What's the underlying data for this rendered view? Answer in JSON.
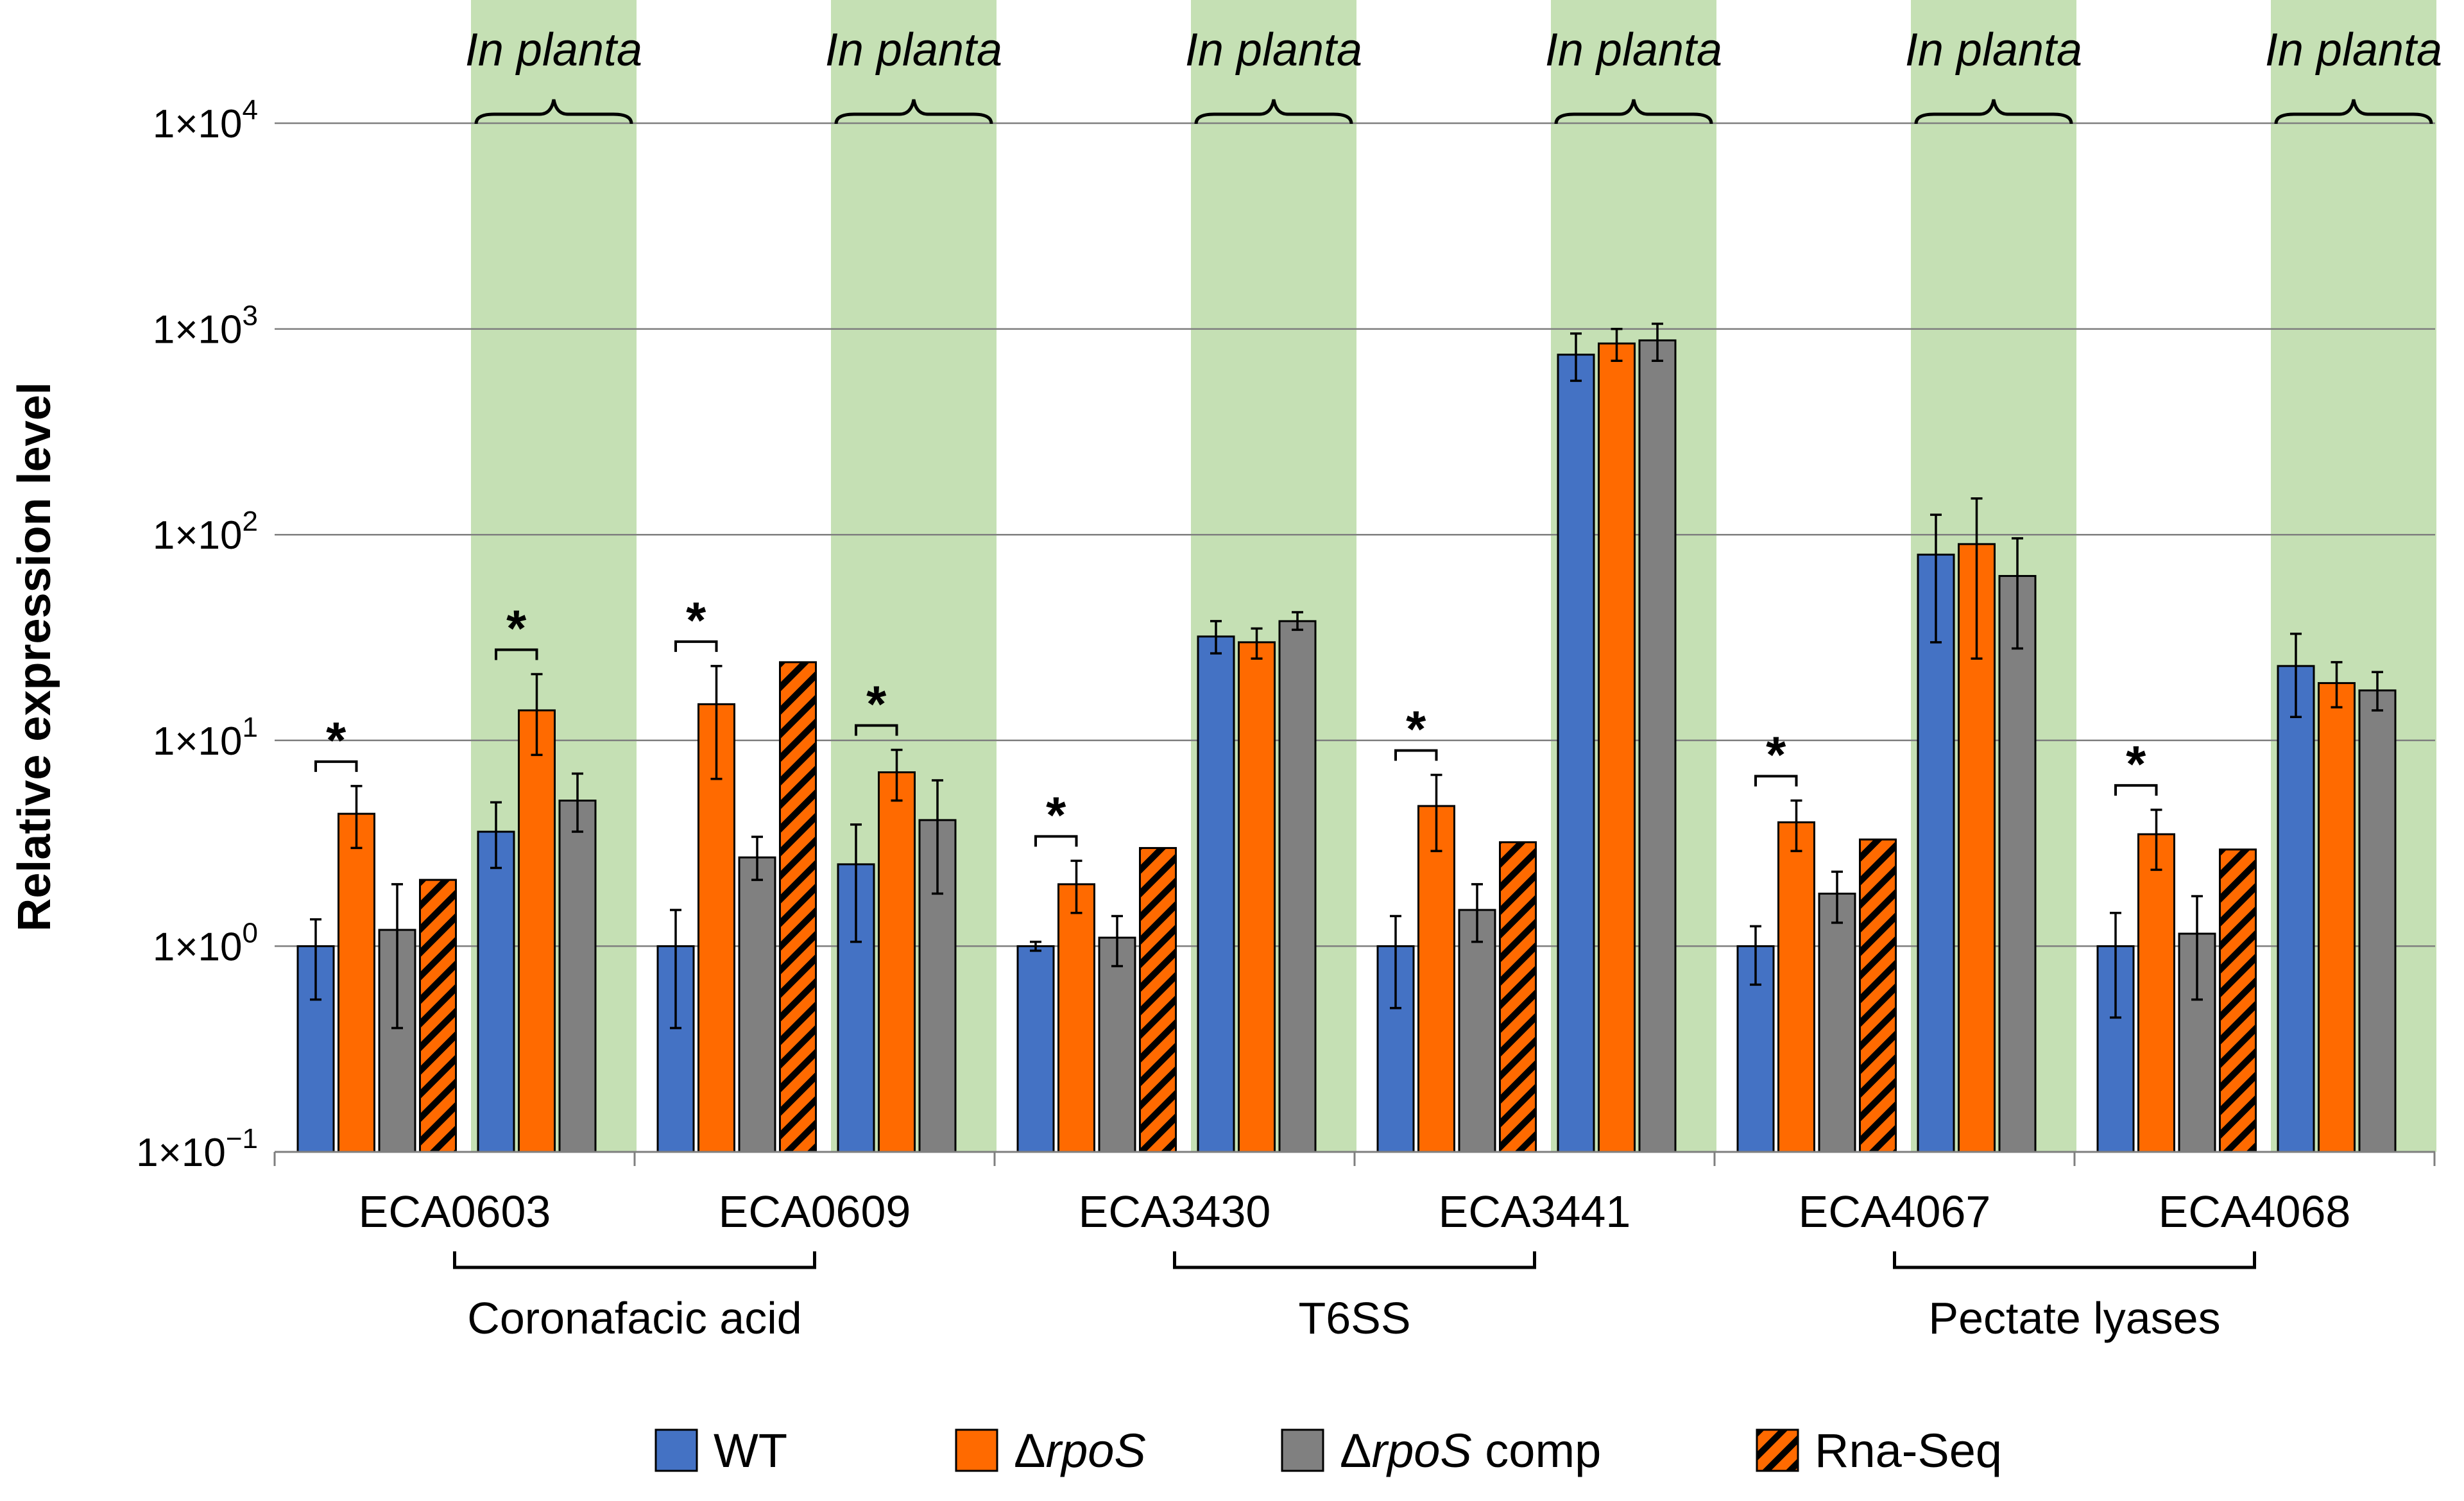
{
  "chart_data": {
    "type": "bar",
    "yscale": "log",
    "ylabel": "Relative expression level",
    "ylim": [
      0.1,
      10000
    ],
    "yticks": [
      {
        "value": 0.1,
        "base": "1×10",
        "exp": "−1"
      },
      {
        "value": 1,
        "base": "1×10",
        "exp": "0"
      },
      {
        "value": 10,
        "base": "1×10",
        "exp": "1"
      },
      {
        "value": 100,
        "base": "1×10",
        "exp": "2"
      },
      {
        "value": 1000,
        "base": "1×10",
        "exp": "3"
      },
      {
        "value": 10000,
        "base": "1×10",
        "exp": "4"
      }
    ],
    "grid": true,
    "in_planta_label": "In planta",
    "legend_position": "bottom",
    "series": [
      {
        "key": "wt",
        "name": "WT",
        "name_italic": "",
        "name_suffix": "",
        "color": "#4472C4",
        "hatched": false
      },
      {
        "key": "rpos",
        "name": "Δ",
        "name_italic": "rpoS",
        "name_suffix": "",
        "color": "#FF6A00",
        "hatched": false
      },
      {
        "key": "comp",
        "name": "Δ",
        "name_italic": "rpoS",
        "name_suffix": " comp",
        "color": "#808080",
        "hatched": false
      },
      {
        "key": "rnaseq",
        "name": "Rna-Seq",
        "name_italic": "",
        "name_suffix": "",
        "color": "#FF6A00",
        "hatched": true
      }
    ],
    "conditions": [
      {
        "gene": "ECA0603",
        "in_planta": false,
        "significant": true,
        "bars": {
          "wt": {
            "value": 1.0,
            "err": [
              0.55,
              1.35
            ]
          },
          "rpos": {
            "value": 4.4,
            "err": [
              3.0,
              6.0
            ]
          },
          "comp": {
            "value": 1.2,
            "err": [
              0.4,
              2.0
            ]
          },
          "rnaseq": {
            "value": 2.1
          }
        }
      },
      {
        "gene": "ECA0603",
        "in_planta": true,
        "significant": true,
        "bars": {
          "wt": {
            "value": 3.6,
            "err": [
              2.4,
              5.0
            ]
          },
          "rpos": {
            "value": 14.0,
            "err": [
              8.5,
              21.0
            ]
          },
          "comp": {
            "value": 5.1,
            "err": [
              3.6,
              6.9
            ]
          }
        }
      },
      {
        "gene": "ECA0609",
        "in_planta": false,
        "significant": true,
        "bars": {
          "wt": {
            "value": 1.0,
            "err": [
              0.4,
              1.5
            ]
          },
          "rpos": {
            "value": 15.0,
            "err": [
              6.5,
              23.0
            ]
          },
          "comp": {
            "value": 2.7,
            "err": [
              2.1,
              3.4
            ]
          },
          "rnaseq": {
            "value": 24.0
          }
        }
      },
      {
        "gene": "ECA0609",
        "in_planta": true,
        "significant": true,
        "bars": {
          "wt": {
            "value": 2.5,
            "err": [
              1.05,
              3.9
            ]
          },
          "rpos": {
            "value": 7.0,
            "err": [
              5.1,
              9.0
            ]
          },
          "comp": {
            "value": 4.1,
            "err": [
              1.8,
              6.4
            ]
          }
        }
      },
      {
        "gene": "ECA3430",
        "in_planta": false,
        "significant": true,
        "bars": {
          "wt": {
            "value": 1.0,
            "err": [
              0.95,
              1.05
            ]
          },
          "rpos": {
            "value": 2.0,
            "err": [
              1.45,
              2.6
            ]
          },
          "comp": {
            "value": 1.1,
            "err": [
              0.8,
              1.4
            ]
          },
          "rnaseq": {
            "value": 3.0
          }
        }
      },
      {
        "gene": "ECA3430",
        "in_planta": true,
        "significant": false,
        "bars": {
          "wt": {
            "value": 32.0,
            "err": [
              26.5,
              38.0
            ]
          },
          "rpos": {
            "value": 30.0,
            "err": [
              25.0,
              35.0
            ]
          },
          "comp": {
            "value": 38.0,
            "err": [
              34.5,
              42.0
            ]
          }
        }
      },
      {
        "gene": "ECA3441",
        "in_planta": false,
        "significant": true,
        "bars": {
          "wt": {
            "value": 1.0,
            "err": [
              0.5,
              1.4
            ]
          },
          "rpos": {
            "value": 4.8,
            "err": [
              2.9,
              6.8
            ]
          },
          "comp": {
            "value": 1.5,
            "err": [
              1.05,
              2.0
            ]
          },
          "rnaseq": {
            "value": 3.2
          }
        }
      },
      {
        "gene": "ECA3441",
        "in_planta": true,
        "significant": false,
        "bars": {
          "wt": {
            "value": 750.0,
            "err": [
              560.0,
              950.0
            ]
          },
          "rpos": {
            "value": 850.0,
            "err": [
              700.0,
              1000.0
            ]
          },
          "comp": {
            "value": 880.0,
            "err": [
              700.0,
              1060.0
            ]
          }
        }
      },
      {
        "gene": "ECA4067",
        "in_planta": false,
        "significant": true,
        "bars": {
          "wt": {
            "value": 1.0,
            "err": [
              0.65,
              1.25
            ]
          },
          "rpos": {
            "value": 4.0,
            "err": [
              2.9,
              5.1
            ]
          },
          "comp": {
            "value": 1.8,
            "err": [
              1.3,
              2.3
            ]
          },
          "rnaseq": {
            "value": 3.3
          }
        }
      },
      {
        "gene": "ECA4067",
        "in_planta": true,
        "significant": false,
        "bars": {
          "wt": {
            "value": 80.0,
            "err": [
              30.0,
              125.0
            ]
          },
          "rpos": {
            "value": 90.0,
            "err": [
              25.0,
              150.0
            ]
          },
          "comp": {
            "value": 63.0,
            "err": [
              28.0,
              96.0
            ]
          }
        }
      },
      {
        "gene": "ECA4068",
        "in_planta": false,
        "significant": true,
        "bars": {
          "wt": {
            "value": 1.0,
            "err": [
              0.45,
              1.45
            ]
          },
          "rpos": {
            "value": 3.5,
            "err": [
              2.35,
              4.6
            ]
          },
          "comp": {
            "value": 1.15,
            "err": [
              0.55,
              1.75
            ]
          },
          "rnaseq": {
            "value": 2.95
          }
        }
      },
      {
        "gene": "ECA4068",
        "in_planta": true,
        "significant": false,
        "bars": {
          "wt": {
            "value": 23.0,
            "err": [
              13.0,
              33.0
            ]
          },
          "rpos": {
            "value": 19.0,
            "err": [
              14.5,
              24.0
            ]
          },
          "comp": {
            "value": 17.5,
            "err": [
              14.0,
              21.5
            ]
          }
        }
      }
    ],
    "genes": [
      "ECA0603",
      "ECA0609",
      "ECA3430",
      "ECA3441",
      "ECA4067",
      "ECA4068"
    ],
    "gene_groups": [
      {
        "label": "Coronafacic acid",
        "genes": [
          "ECA0603",
          "ECA0609"
        ]
      },
      {
        "label": "T6SS",
        "genes": [
          "ECA3430",
          "ECA3441"
        ]
      },
      {
        "label": "Pectate lyases",
        "genes": [
          "ECA4067",
          "ECA4068"
        ]
      }
    ],
    "significance_marker": "*"
  }
}
